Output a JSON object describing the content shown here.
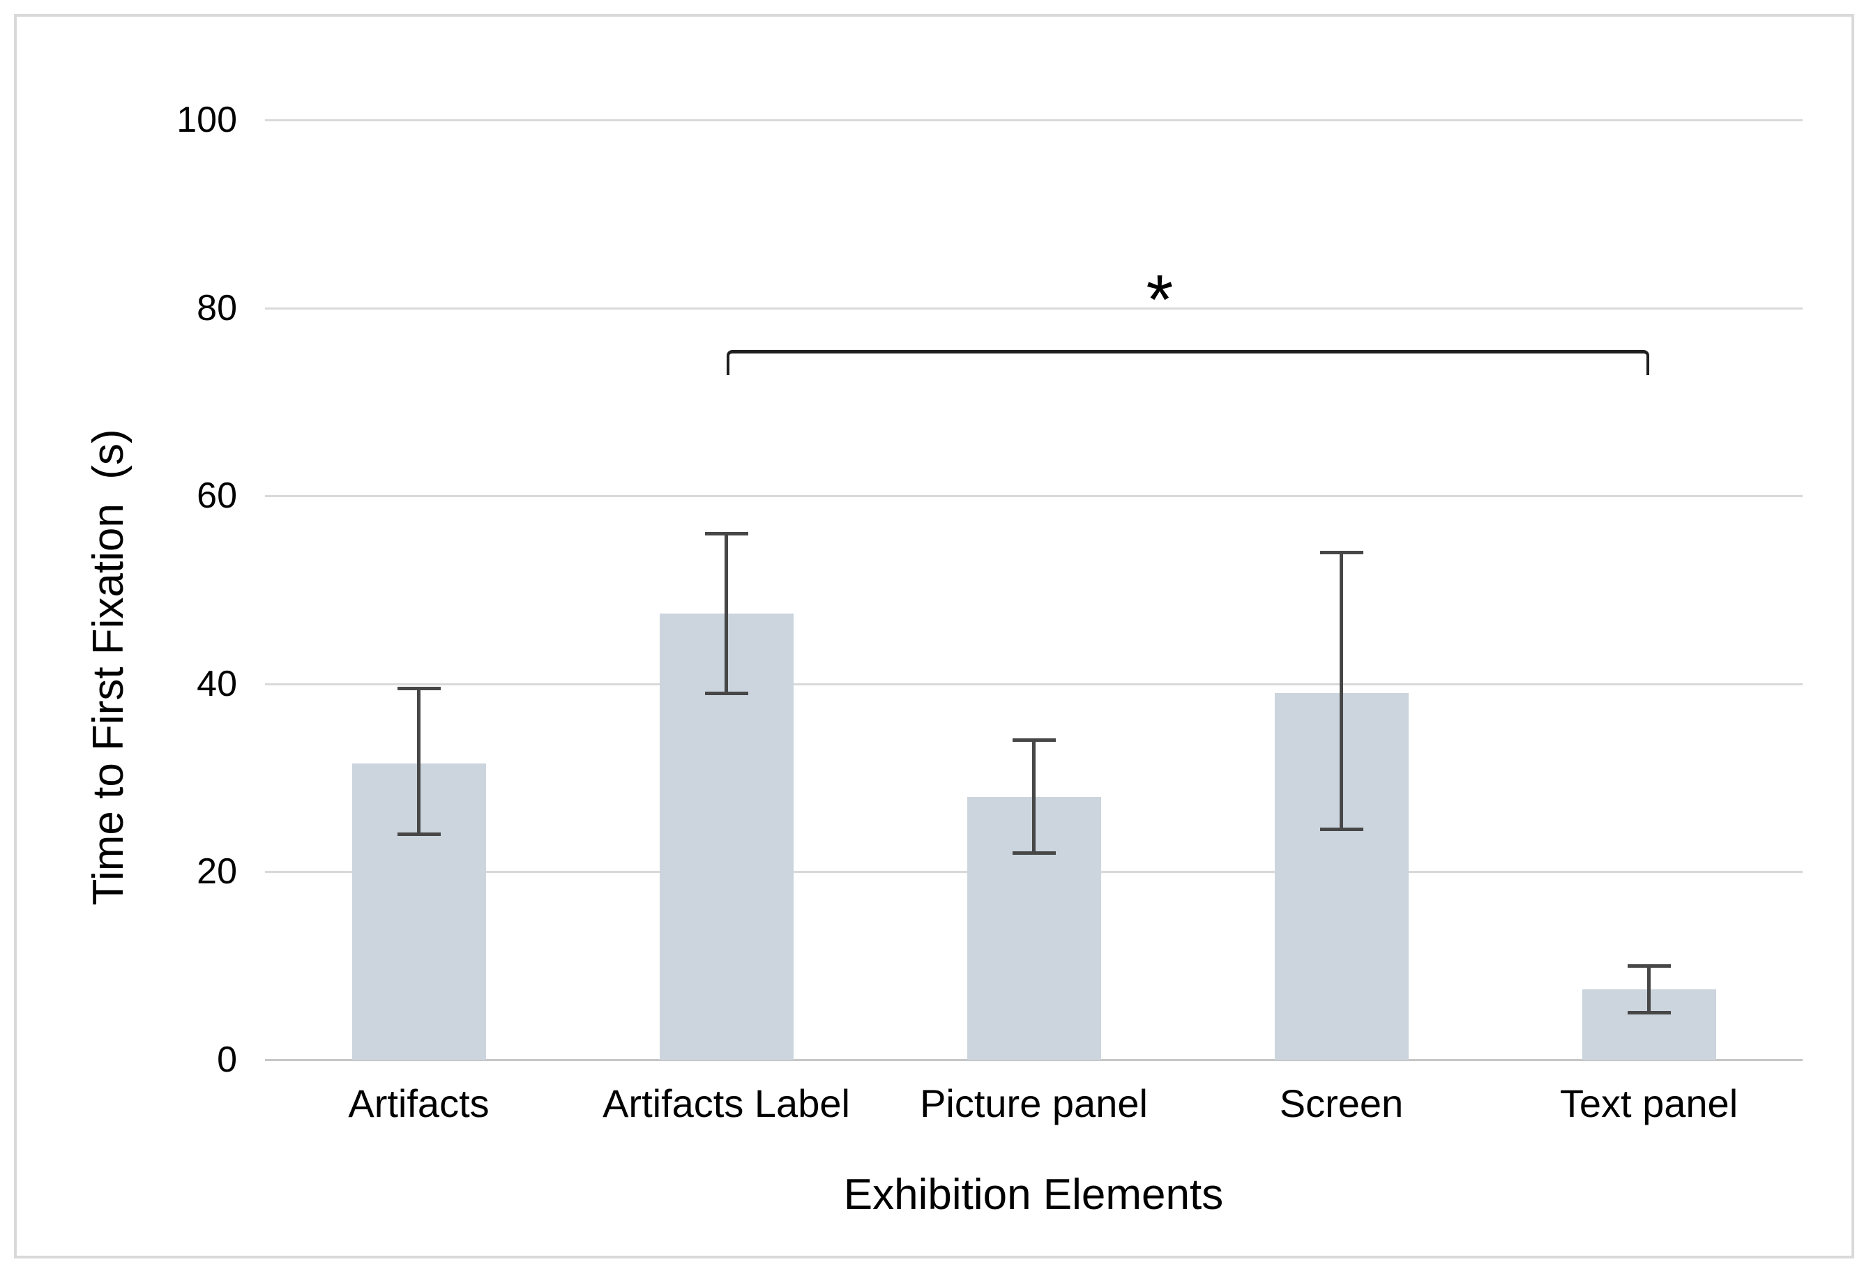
{
  "figure": {
    "background": "#ffffff",
    "border_color": "#d9d9d9"
  },
  "chart_data": {
    "type": "bar",
    "title": "",
    "xlabel": "Exhibition Elements",
    "ylabel": "Time to First Fixation  (s)",
    "categories": [
      "Artifacts",
      "Artifacts Label",
      "Picture panel",
      "Screen",
      "Text panel"
    ],
    "values": [
      31.5,
      47.5,
      28,
      39,
      7.5
    ],
    "error_upper": [
      39.5,
      56,
      34,
      54,
      10
    ],
    "error_lower": [
      24,
      39,
      22,
      24.5,
      5
    ],
    "ylim": [
      0,
      100
    ],
    "yticks": [
      0,
      20,
      40,
      60,
      80,
      100
    ],
    "grid": true,
    "legend_position": "none",
    "bar_color": "#ccd5de",
    "gridline_color": "#d9d9d9",
    "baseline_color": "#c6c6c6",
    "error_bar_color": "#474747",
    "significance": {
      "label": "*",
      "from_category": "Artifacts Label",
      "to_category": "Text panel",
      "from_index": 1,
      "to_index": 4,
      "bracket_y_value": 75.5,
      "bracket_color": "#1f1f1f"
    }
  }
}
